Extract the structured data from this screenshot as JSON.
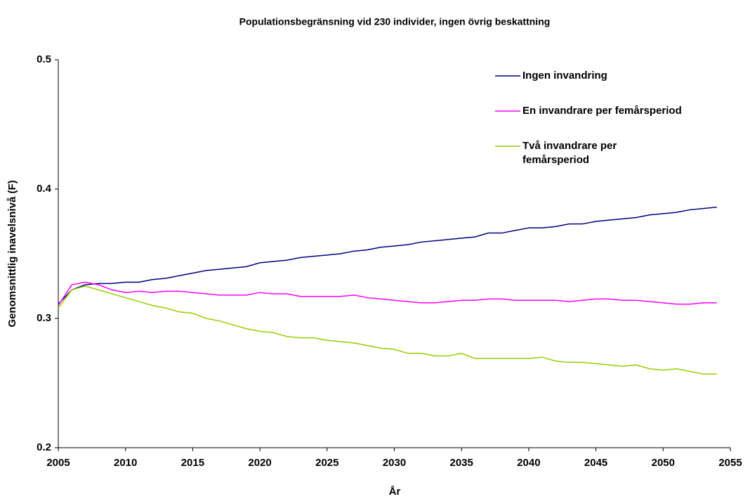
{
  "chart_data": {
    "type": "line",
    "title": "Populationsbegränsning vid 230 individer, ingen övrig beskattning",
    "xlabel": "År",
    "ylabel": "Genomsnittlig inavelsnivå (F)",
    "x": [
      2005,
      2006,
      2007,
      2008,
      2009,
      2010,
      2011,
      2012,
      2013,
      2014,
      2015,
      2016,
      2017,
      2018,
      2019,
      2020,
      2021,
      2022,
      2023,
      2024,
      2025,
      2026,
      2027,
      2028,
      2029,
      2030,
      2031,
      2032,
      2033,
      2034,
      2035,
      2036,
      2037,
      2038,
      2039,
      2040,
      2041,
      2042,
      2043,
      2044,
      2045,
      2046,
      2047,
      2048,
      2049,
      2050,
      2051,
      2052,
      2053,
      2054
    ],
    "series": [
      {
        "name": "Ingen invandring",
        "color": "#000080",
        "values": [
          0.311,
          0.322,
          0.326,
          0.327,
          0.327,
          0.328,
          0.328,
          0.33,
          0.331,
          0.333,
          0.335,
          0.337,
          0.338,
          0.339,
          0.34,
          0.343,
          0.344,
          0.345,
          0.347,
          0.348,
          0.349,
          0.35,
          0.352,
          0.353,
          0.355,
          0.356,
          0.357,
          0.359,
          0.36,
          0.361,
          0.362,
          0.363,
          0.366,
          0.366,
          0.368,
          0.37,
          0.37,
          0.371,
          0.373,
          0.373,
          0.375,
          0.376,
          0.377,
          0.378,
          0.38,
          0.381,
          0.382,
          0.384,
          0.385,
          0.386
        ]
      },
      {
        "name": "En invandrare per femårsperiod",
        "color": "#ff00ff",
        "values": [
          0.31,
          0.326,
          0.328,
          0.326,
          0.322,
          0.32,
          0.321,
          0.32,
          0.321,
          0.321,
          0.32,
          0.319,
          0.318,
          0.318,
          0.318,
          0.32,
          0.319,
          0.319,
          0.317,
          0.317,
          0.317,
          0.317,
          0.318,
          0.316,
          0.315,
          0.314,
          0.313,
          0.312,
          0.312,
          0.313,
          0.314,
          0.314,
          0.315,
          0.315,
          0.314,
          0.314,
          0.314,
          0.314,
          0.313,
          0.314,
          0.315,
          0.315,
          0.314,
          0.314,
          0.313,
          0.312,
          0.311,
          0.311,
          0.312,
          0.312
        ]
      },
      {
        "name": "Två invandrare per\nfemårsperiod",
        "color": "#99cc00",
        "values": [
          0.308,
          0.322,
          0.325,
          0.322,
          0.319,
          0.316,
          0.313,
          0.31,
          0.308,
          0.305,
          0.304,
          0.3,
          0.298,
          0.295,
          0.292,
          0.29,
          0.289,
          0.286,
          0.285,
          0.285,
          0.283,
          0.282,
          0.281,
          0.279,
          0.277,
          0.276,
          0.273,
          0.273,
          0.271,
          0.271,
          0.273,
          0.269,
          0.269,
          0.269,
          0.269,
          0.269,
          0.27,
          0.267,
          0.266,
          0.266,
          0.265,
          0.264,
          0.263,
          0.264,
          0.261,
          0.26,
          0.261,
          0.259,
          0.257,
          0.257
        ]
      }
    ],
    "xlim": [
      2005,
      2055
    ],
    "xticks": [
      2005,
      2010,
      2015,
      2020,
      2025,
      2030,
      2035,
      2040,
      2045,
      2050,
      2055
    ],
    "ylim": [
      0.2,
      0.5
    ],
    "yticks": [
      0.2,
      0.3,
      0.4,
      0.5
    ],
    "legend": "upper right"
  }
}
